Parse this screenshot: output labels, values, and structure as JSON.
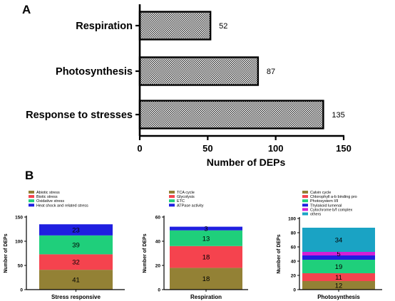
{
  "panel_a": {
    "letter": "A"
  },
  "panel_b": {
    "letter": "B"
  },
  "chart_data": [
    {
      "type": "bar",
      "orientation": "horizontal",
      "categories": [
        "Respiration",
        "Photosynthesis",
        "Response to stresses"
      ],
      "values": [
        52,
        87,
        135
      ],
      "xlabel": "Number of DEPs",
      "ylabel": "",
      "xlim": [
        0,
        150
      ],
      "xticks": [
        "0",
        "50",
        "100",
        "150"
      ],
      "fill": "checkered",
      "grid": false
    },
    {
      "type": "bar",
      "stacked": true,
      "categories": [
        "Stress responsive"
      ],
      "ylabel": "Number of DEPs",
      "ylim": [
        0,
        150
      ],
      "yticks": [
        "0",
        "50",
        "100",
        "150"
      ],
      "legend_position": "top",
      "series": [
        {
          "name": "Abiotic stress",
          "values": [
            41
          ],
          "color": "#938135",
          "label": "41"
        },
        {
          "name": "Biotic stress",
          "values": [
            32
          ],
          "color": "#f5434e",
          "label": "32"
        },
        {
          "name": "Oxidative stress",
          "values": [
            39
          ],
          "color": "#1fcf7b",
          "label": "39"
        },
        {
          "name": "Heat shock and related stress",
          "values": [
            23
          ],
          "color": "#1f1fe0",
          "label": "23"
        }
      ]
    },
    {
      "type": "bar",
      "stacked": true,
      "categories": [
        "Respiration"
      ],
      "ylabel": "Number of DEPs",
      "ylim": [
        0,
        60
      ],
      "yticks": [
        "0",
        "20",
        "40",
        "60"
      ],
      "legend_position": "top",
      "series": [
        {
          "name": "TCA cycle",
          "values": [
            18
          ],
          "color": "#938135",
          "label": "18"
        },
        {
          "name": "Glycolysis",
          "values": [
            18
          ],
          "color": "#f5434e",
          "label": "18"
        },
        {
          "name": "ETC",
          "values": [
            13
          ],
          "color": "#1fcf7b",
          "label": "13"
        },
        {
          "name": "ATPase activity",
          "values": [
            3
          ],
          "color": "#1f1fe0",
          "label": "3"
        }
      ]
    },
    {
      "type": "bar",
      "stacked": true,
      "categories": [
        "Photosynthesis"
      ],
      "ylabel": "Number of DEPs",
      "ylim": [
        0,
        100
      ],
      "yticks": [
        "0",
        "20",
        "40",
        "60",
        "80",
        "100"
      ],
      "legend_position": "top",
      "series": [
        {
          "name": "Calvin cycle",
          "values": [
            12
          ],
          "color": "#938135",
          "label": "12"
        },
        {
          "name": "Chlorophyll a-b binding pro",
          "values": [
            11
          ],
          "color": "#f5434e",
          "label": "11"
        },
        {
          "name": "Photosystem I/II",
          "values": [
            19
          ],
          "color": "#1fcf7b",
          "label": "19"
        },
        {
          "name": "Thylakoid lumenal",
          "values": [
            6
          ],
          "color": "#1f1fe0",
          "label": ""
        },
        {
          "name": "Cytochrome b/f complex",
          "values": [
            5
          ],
          "color": "#d21fd6",
          "label": "5"
        },
        {
          "name": "others",
          "values": [
            34
          ],
          "color": "#1aa3c4",
          "label": "34"
        }
      ]
    }
  ]
}
